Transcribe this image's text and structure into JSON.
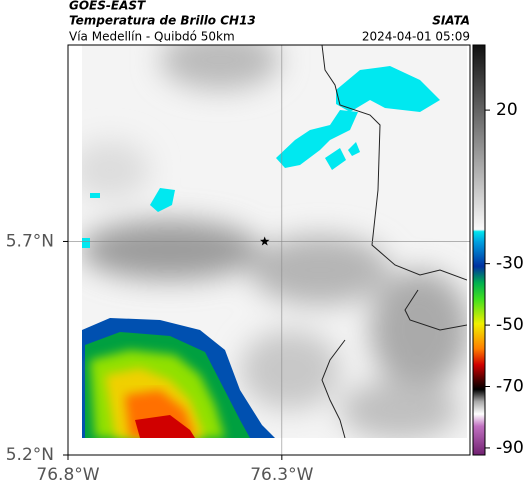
{
  "header": {
    "title": "GOES-EAST",
    "subtitle": "Temperatura de Brillo CH13",
    "place": "Vía Medellín - Quibdó 50km",
    "source": "SIATA",
    "timestamp": "2024-04-01 05:09"
  },
  "map": {
    "xlim": [
      -76.8,
      -75.86
    ],
    "ylim": [
      5.2,
      6.16
    ],
    "xticks": [
      {
        "value": -76.8,
        "label": "76.8°W"
      },
      {
        "value": -76.3,
        "label": "76.3°W"
      }
    ],
    "yticks": [
      {
        "value": 5.2,
        "label": "5.2°N"
      },
      {
        "value": 5.7,
        "label": "5.7°N"
      }
    ],
    "grid": true,
    "marker": {
      "lon": -76.34,
      "lat": 5.7
    }
  },
  "colorbar": {
    "lim": [
      -92.3,
      41.2
    ],
    "ticks": [
      20,
      -30,
      -50,
      -70,
      -90
    ]
  }
}
